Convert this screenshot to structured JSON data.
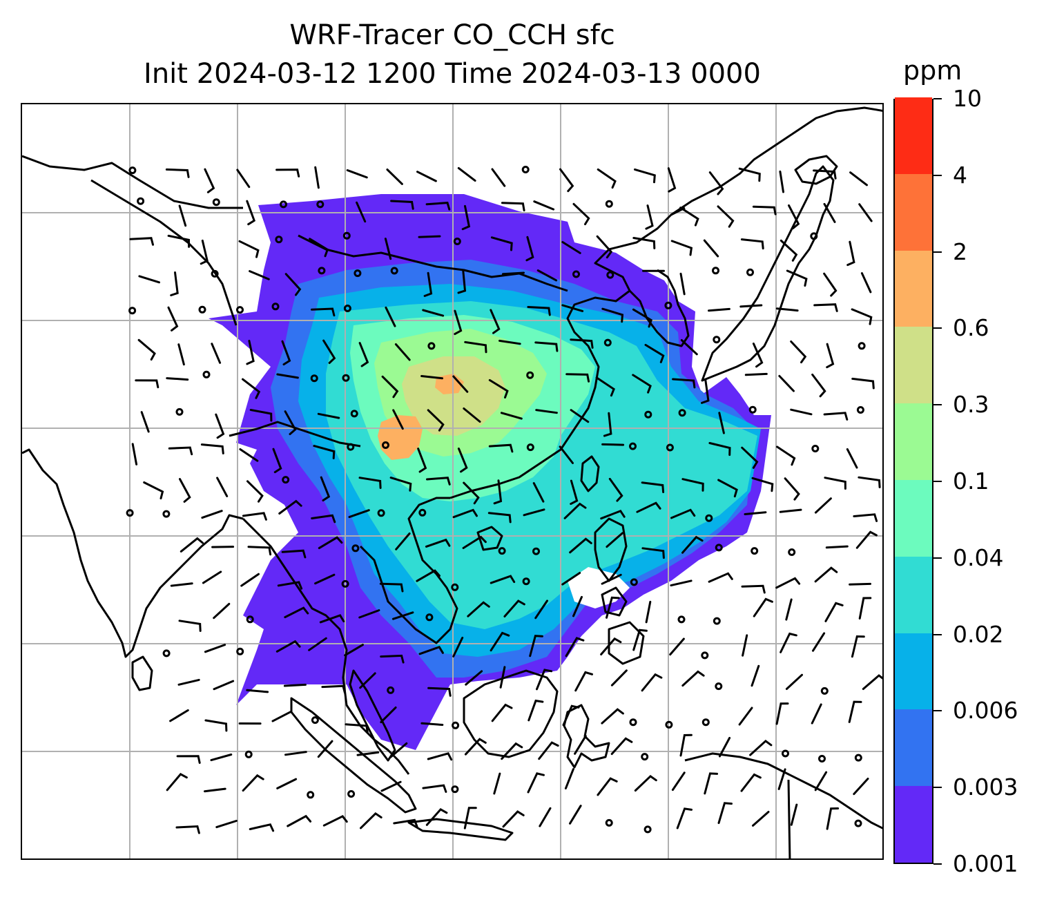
{
  "title": {
    "line1": "WRF-Tracer CO_CCH sfc",
    "line2": "Init 2024-03-12 1200 Time 2024-03-13 0000"
  },
  "colorbar": {
    "unit": "ppm",
    "levels": [
      "0.001",
      "0.003",
      "0.006",
      "0.02",
      "0.04",
      "0.1",
      "0.3",
      "0.6",
      "2",
      "4",
      "10"
    ],
    "colors": [
      "#6329f7",
      "#3273f1",
      "#07b1e9",
      "#31dcd3",
      "#6cfbbe",
      "#9bfa93",
      "#cfe088",
      "#fdb061",
      "#fe7238",
      "#fe2c15"
    ]
  },
  "map": {
    "gridlines": true,
    "gridline_color": "#b0b0b0",
    "coastline_color": "#000000",
    "field": "CO_CCH surface concentration with wind barbs",
    "wind_symbols": [
      "wind-barb",
      "calm-circle"
    ]
  }
}
